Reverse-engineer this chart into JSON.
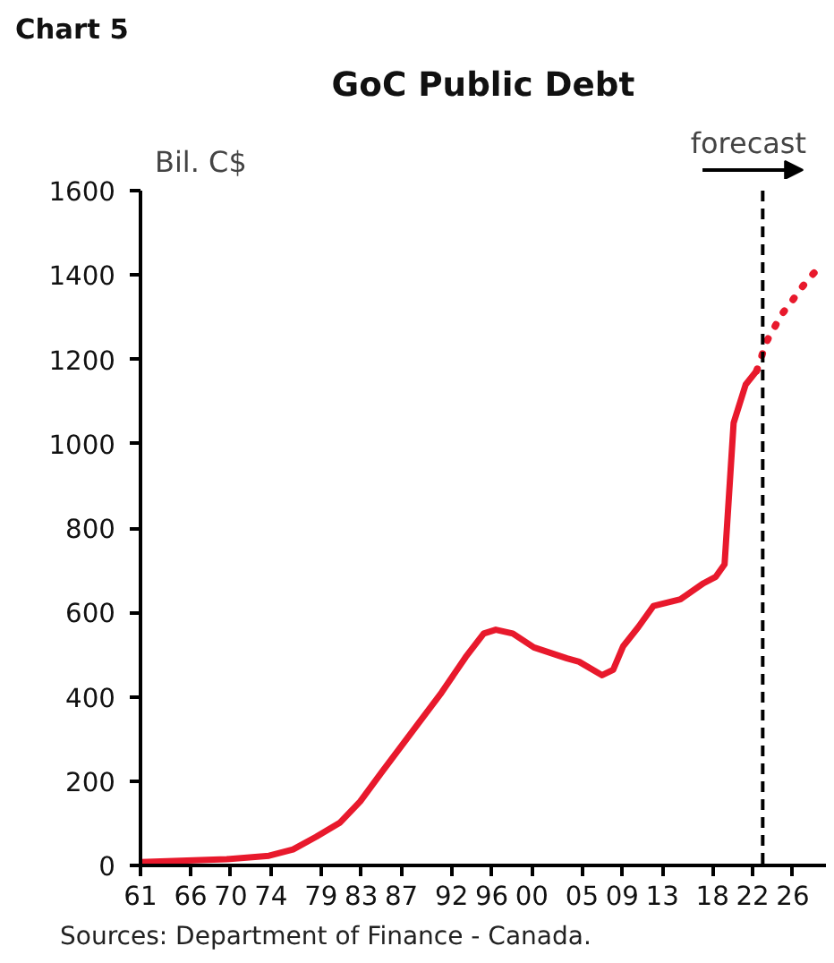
{
  "chart_data": {
    "type": "line",
    "subtitle": "Chart 5",
    "title": "GoC Public Debt",
    "ylabel": "Bil. C$",
    "annotations": [
      "Sources: Department of Finance - Canada."
    ],
    "xlim": [
      1961,
      2029.3
    ],
    "ylim": [
      0,
      1600
    ],
    "yticks": [
      0,
      200,
      400,
      600,
      800,
      1000,
      1200,
      1400,
      1600
    ],
    "xticks": [
      {
        "value": 1961,
        "label": "61"
      },
      {
        "value": 1966,
        "label": "66"
      },
      {
        "value": 1970,
        "label": "70"
      },
      {
        "value": 1974,
        "label": "74"
      },
      {
        "value": 1979,
        "label": "79"
      },
      {
        "value": 1983,
        "label": "83"
      },
      {
        "value": 1987,
        "label": "87"
      },
      {
        "value": 1992,
        "label": "92"
      },
      {
        "value": 1996,
        "label": "96"
      },
      {
        "value": 2000,
        "label": "00"
      },
      {
        "value": 2005,
        "label": "05"
      },
      {
        "value": 2009,
        "label": "09"
      },
      {
        "value": 2013,
        "label": "13"
      },
      {
        "value": 2018,
        "label": "18"
      },
      {
        "value": 2022,
        "label": "22"
      },
      {
        "value": 2026,
        "label": "26"
      }
    ],
    "grid": false,
    "series": [
      {
        "color": "#e8192c",
        "line_style": "solid",
        "x": [
          1961,
          1969.6,
          1973.8,
          1976.2,
          1978.5,
          1980.9,
          1982.9,
          1985,
          1988.6,
          1991,
          1993.4,
          1995.2,
          1996.4,
          1998.1,
          2000.2,
          2003.5,
          2004.7,
          2007,
          2008.1,
          2009.1,
          2010.6,
          2012.1,
          2014.8,
          2017.1,
          2018.3,
          2019.2,
          2020.1,
          2021.3,
          2022.4
        ],
        "values": [
          8,
          15,
          23,
          38,
          68,
          102,
          152,
          220,
          334,
          410,
          494,
          550,
          559,
          550,
          517,
          491,
          483,
          451,
          464,
          520,
          565,
          615,
          631,
          669,
          684,
          714,
          1049,
          1140,
          1173
        ]
      },
      {
        "color": "#e8192c",
        "line_style": "dotted",
        "x": [
          2022.4,
          2023.4,
          2024.2,
          2024.9,
          2025.8,
          2026.7,
          2027.7,
          2028.6
        ],
        "values": [
          1173,
          1243,
          1277,
          1307,
          1334,
          1365,
          1394,
          1418
        ]
      }
    ],
    "ref_lines": [
      {
        "axis": "x",
        "value": 2023,
        "label": "forecast",
        "line_style": "dashed",
        "color": "#000000"
      }
    ]
  }
}
